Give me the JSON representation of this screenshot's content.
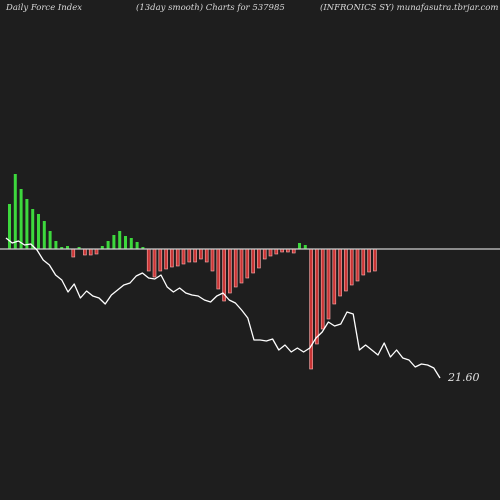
{
  "header": {
    "left": "Daily Force  Index",
    "center": "(13day smooth) Charts for 537985",
    "right": "(INFRONICS SY) munafasutra.tbrjar.com"
  },
  "chart_data": {
    "type": "bar",
    "title": "",
    "zero_line": 0,
    "ylim": [
      -13,
      8
    ],
    "bar_color_positive": "#3dd83d",
    "bar_color_negative": "#e63a3a",
    "series": [
      {
        "name": "",
        "type": "bar",
        "values": [
          4.5,
          7.5,
          6.0,
          5.0,
          4.0,
          3.5,
          2.8,
          1.8,
          0.8,
          0.2,
          0.3,
          -0.8,
          0.2,
          -0.6,
          -0.6,
          -0.5,
          0.3,
          0.8,
          1.4,
          1.8,
          1.3,
          1.1,
          0.7,
          0.2,
          -2.2,
          -2.8,
          -2.2,
          -2.0,
          -1.8,
          -1.7,
          -1.5,
          -1.3,
          -1.3,
          -1.0,
          -1.3,
          -2.2,
          -4.0,
          -5.2,
          -4.4,
          -3.8,
          -3.4,
          -2.9,
          -2.4,
          -1.9,
          -1.0,
          -0.7,
          -0.5,
          -0.3,
          -0.3,
          -0.4,
          0.6,
          0.4,
          -12.0,
          -9.5,
          -8.0,
          -7.0,
          -5.5,
          -4.7,
          -4.2,
          -3.6,
          -3.2,
          -2.6,
          -2.3,
          -2.2
        ]
      },
      {
        "name": "",
        "type": "line",
        "color": "#ffffff",
        "values": [
          238,
          243,
          241,
          245,
          244,
          250,
          260,
          265,
          275,
          280,
          292,
          284,
          298,
          291,
          296,
          298,
          304,
          295,
          290,
          285,
          283,
          276,
          273,
          278,
          279,
          275,
          287,
          292,
          288,
          293,
          295,
          296,
          300,
          302,
          296,
          293,
          300,
          303,
          310,
          318,
          340,
          340,
          341,
          339,
          350,
          345,
          352,
          348,
          352,
          348,
          338,
          332,
          322,
          326,
          324,
          312,
          314,
          350,
          345,
          350,
          355,
          343,
          357,
          350,
          358,
          360,
          367,
          364,
          365,
          368,
          378
        ]
      }
    ],
    "last_value_label": "21.60"
  }
}
